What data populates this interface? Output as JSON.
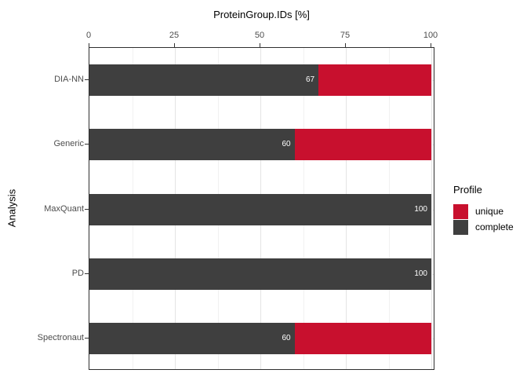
{
  "chart_data": {
    "type": "bar",
    "orientation": "horizontal",
    "stacked": true,
    "title": "ProteinGroup.IDs [%]",
    "ylabel": "Analysis",
    "xlabel": "",
    "categories": [
      "DIA-NN",
      "Generic",
      "MaxQuant",
      "PD",
      "Spectronaut"
    ],
    "series": [
      {
        "name": "complete",
        "color": "#3f3f3f",
        "values": [
          67,
          60,
          100,
          100,
          60
        ]
      },
      {
        "name": "unique",
        "color": "#c8102e",
        "values": [
          33,
          40,
          0,
          0,
          40
        ]
      }
    ],
    "bar_value_labels": [
      "67",
      "60",
      "100",
      "100",
      "60"
    ],
    "x_ticks": [
      0,
      25,
      50,
      75,
      100
    ],
    "x_minor_step": 12.5,
    "xlim": [
      0,
      100
    ],
    "grid": "on",
    "legend": {
      "title": "Profile",
      "position": "right",
      "entries": [
        {
          "label": "unique",
          "color": "#c8102e"
        },
        {
          "label": "complete",
          "color": "#3f3f3f"
        }
      ]
    },
    "colors": {
      "panel_border": "#2f2f2f",
      "grid_major": "#e4e4e4",
      "grid_minor": "#f1f1f1",
      "axis_text": "#4d4d4d",
      "bar_label_text": "#ffffff"
    }
  }
}
